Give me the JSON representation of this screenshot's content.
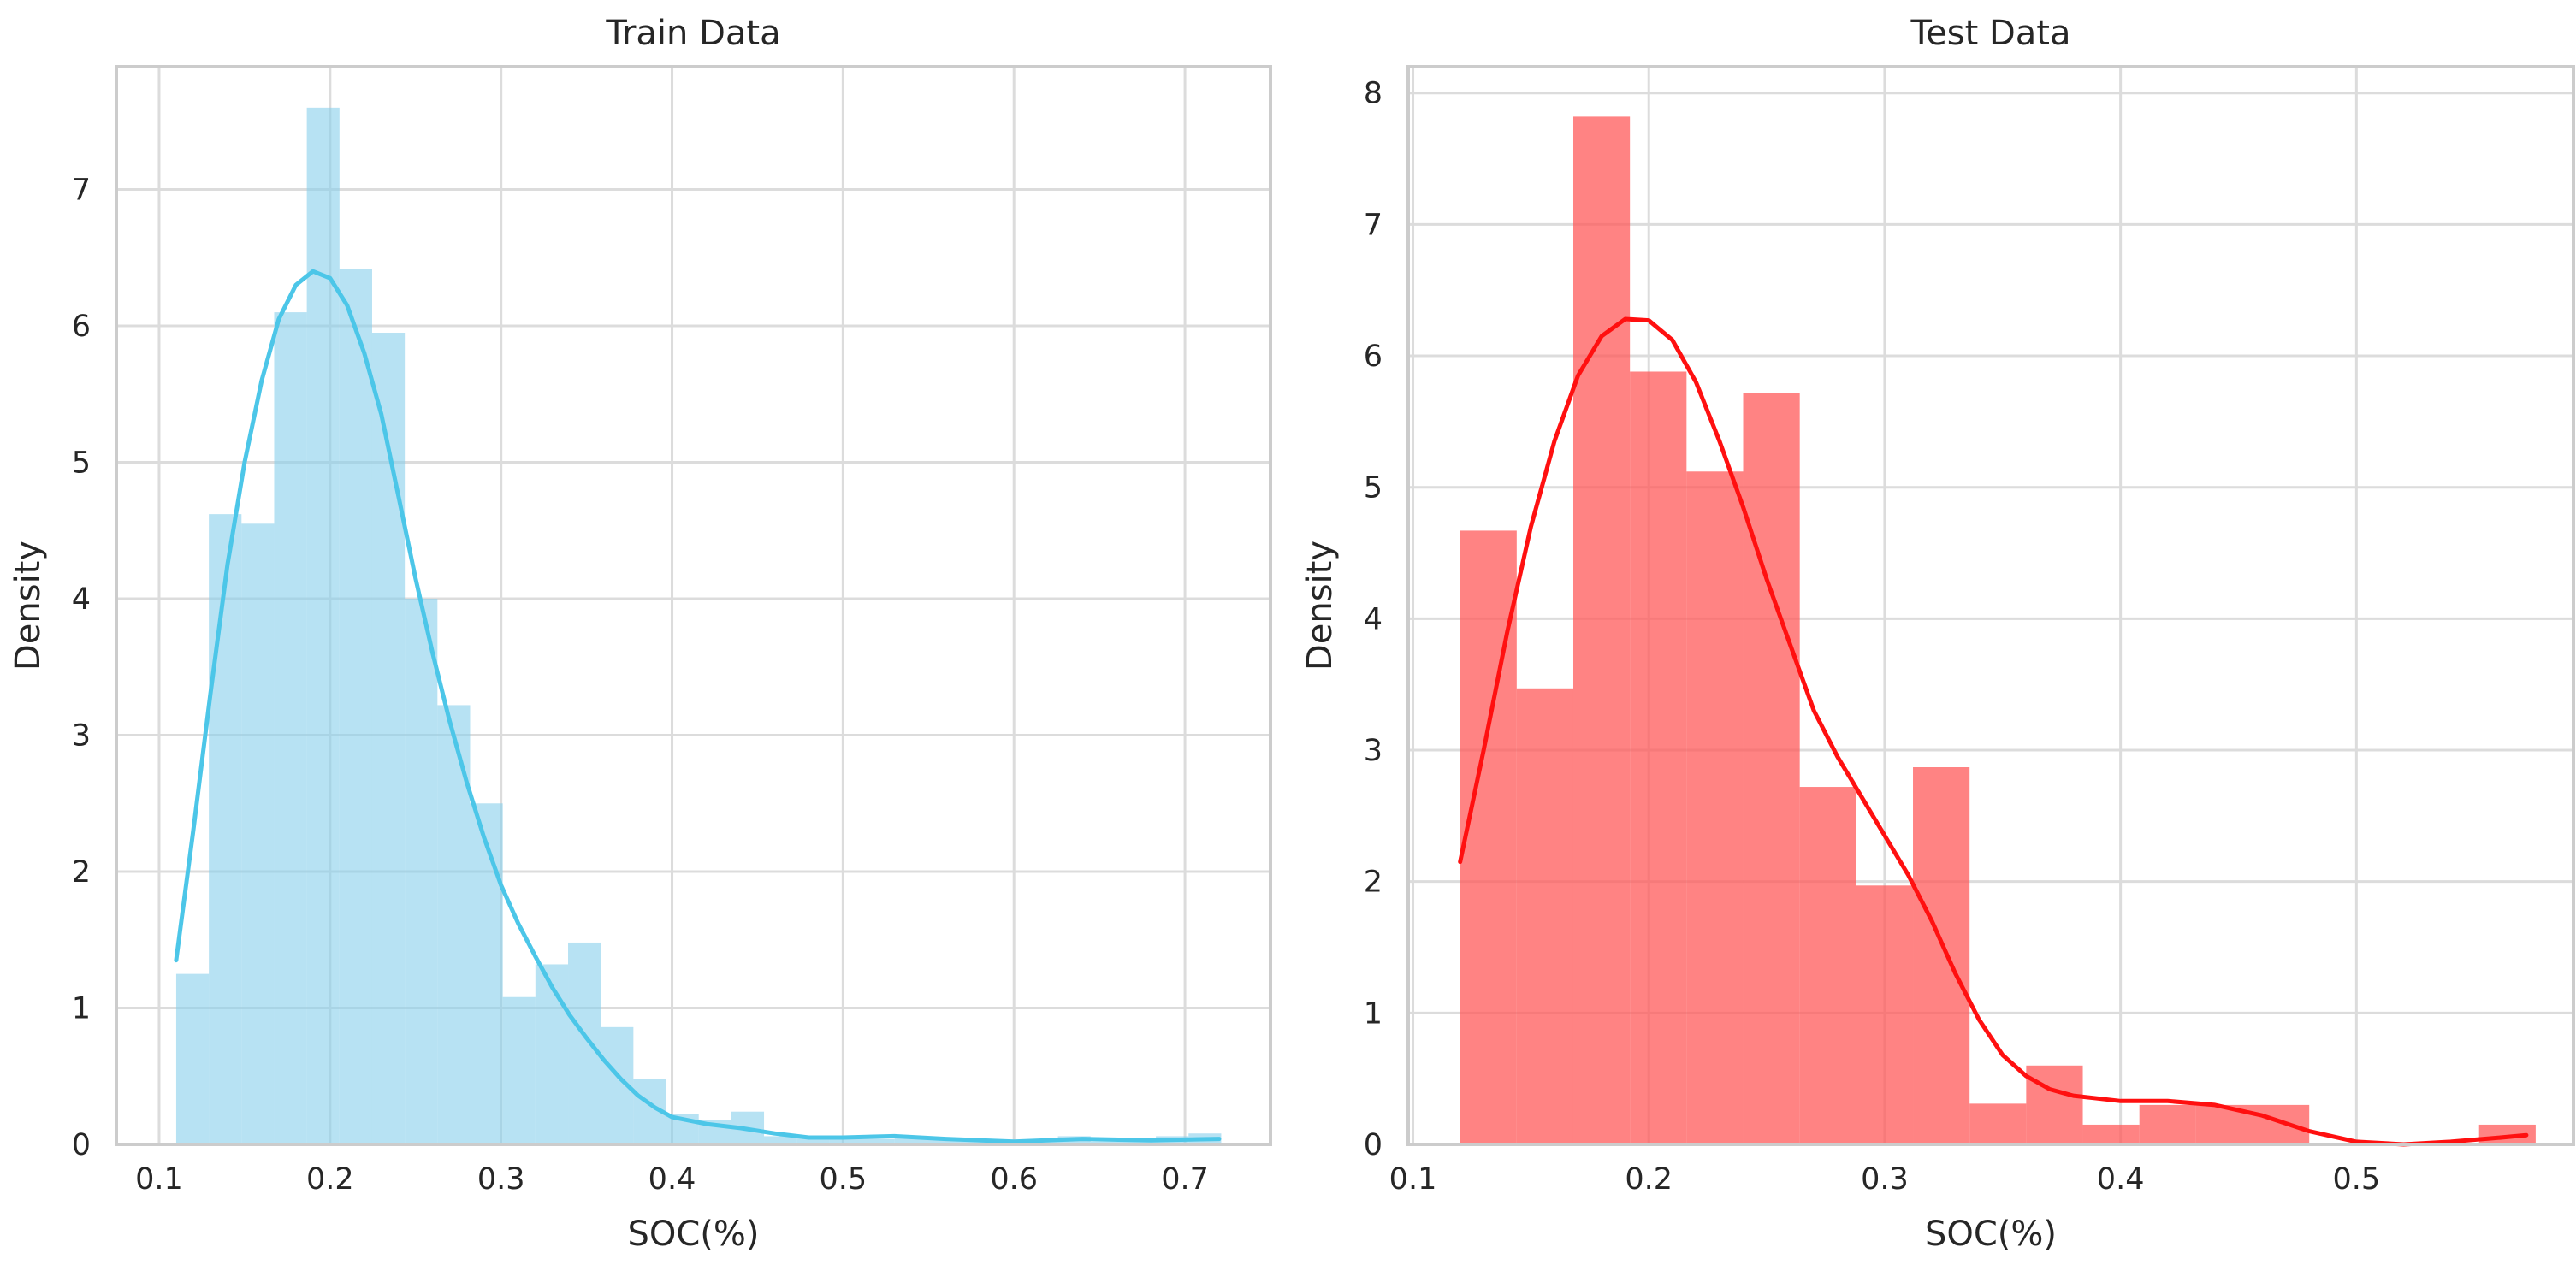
{
  "chart_data": [
    {
      "type": "histogram+kde",
      "title": "Train Data",
      "xlabel": "SOC(%)",
      "ylabel": "Density",
      "xlim": [
        0.075,
        0.75
      ],
      "ylim": [
        0,
        7.9
      ],
      "xticks": [
        "0.1",
        "0.2",
        "0.3",
        "0.4",
        "0.5",
        "0.6",
        "0.7"
      ],
      "xtick_values": [
        0.1,
        0.2,
        0.3,
        0.4,
        0.5,
        0.6,
        0.7
      ],
      "yticks": [
        "0",
        "1",
        "2",
        "3",
        "4",
        "5",
        "6",
        "7"
      ],
      "ytick_values": [
        0,
        1,
        2,
        3,
        4,
        5,
        6,
        7
      ],
      "grid": true,
      "bar_color": "#87CEEB",
      "bar_opacity": 0.6,
      "kde_color": "#4CC6E8",
      "bins": {
        "edges": [
          0.11,
          0.1291,
          0.1482,
          0.1673,
          0.1864,
          0.2055,
          0.2246,
          0.2437,
          0.2628,
          0.2819,
          0.301,
          0.3201,
          0.3392,
          0.3583,
          0.3774,
          0.3965,
          0.4156,
          0.4347,
          0.4538,
          0.4729,
          0.492,
          0.5111,
          0.5302,
          0.5493,
          0.5684,
          0.5875,
          0.6066,
          0.6257,
          0.6448,
          0.6639,
          0.683,
          0.7021,
          0.7212
        ],
        "densities": [
          1.25,
          4.62,
          4.55,
          6.1,
          7.6,
          6.42,
          5.95,
          4.0,
          3.22,
          2.5,
          1.08,
          1.32,
          1.48,
          0.86,
          0.48,
          0.22,
          0.18,
          0.24,
          0.06,
          0.06,
          0.06,
          0.04,
          0.06,
          0.04,
          0.04,
          0.0,
          0.02,
          0.06,
          0.02,
          0.02,
          0.06,
          0.08
        ]
      },
      "kde": {
        "x": [
          0.11,
          0.12,
          0.13,
          0.14,
          0.15,
          0.16,
          0.17,
          0.18,
          0.19,
          0.2,
          0.21,
          0.22,
          0.23,
          0.24,
          0.25,
          0.26,
          0.27,
          0.28,
          0.29,
          0.3,
          0.31,
          0.32,
          0.33,
          0.34,
          0.35,
          0.36,
          0.37,
          0.38,
          0.39,
          0.4,
          0.42,
          0.44,
          0.46,
          0.48,
          0.5,
          0.53,
          0.56,
          0.6,
          0.64,
          0.68,
          0.72
        ],
        "y": [
          1.35,
          2.3,
          3.3,
          4.25,
          5.0,
          5.6,
          6.05,
          6.3,
          6.4,
          6.35,
          6.15,
          5.8,
          5.35,
          4.75,
          4.15,
          3.6,
          3.1,
          2.65,
          2.25,
          1.9,
          1.62,
          1.38,
          1.15,
          0.95,
          0.78,
          0.62,
          0.48,
          0.36,
          0.27,
          0.2,
          0.15,
          0.12,
          0.08,
          0.05,
          0.05,
          0.06,
          0.04,
          0.02,
          0.04,
          0.03,
          0.04
        ]
      }
    },
    {
      "type": "histogram+kde",
      "title": "Test Data",
      "xlabel": "SOC(%)",
      "ylabel": "Density",
      "xlim": [
        0.098,
        0.592
      ],
      "ylim": [
        0,
        8.2
      ],
      "xticks": [
        "0.1",
        "0.2",
        "0.3",
        "0.4",
        "0.5"
      ],
      "xtick_values": [
        0.1,
        0.2,
        0.3,
        0.4,
        0.5
      ],
      "yticks": [
        "0",
        "1",
        "2",
        "3",
        "4",
        "5",
        "6",
        "7",
        "8"
      ],
      "ytick_values": [
        0,
        1,
        2,
        3,
        4,
        5,
        6,
        7,
        8
      ],
      "grid": true,
      "bar_color": "#FF5A5A",
      "bar_opacity": 0.75,
      "kde_color": "#FF1010",
      "bins": {
        "edges": [
          0.12,
          0.144,
          0.168,
          0.192,
          0.216,
          0.24,
          0.264,
          0.288,
          0.312,
          0.336,
          0.36,
          0.384,
          0.408,
          0.432,
          0.456,
          0.48,
          0.504,
          0.528,
          0.552,
          0.576
        ],
        "densities": [
          4.67,
          3.47,
          7.82,
          5.88,
          5.12,
          5.72,
          2.72,
          1.97,
          2.87,
          0.31,
          0.6,
          0.15,
          0.3,
          0.3,
          0.3,
          0.0,
          0.0,
          0.0,
          0.15
        ]
      },
      "kde": {
        "x": [
          0.12,
          0.13,
          0.14,
          0.15,
          0.16,
          0.17,
          0.18,
          0.19,
          0.2,
          0.21,
          0.22,
          0.23,
          0.24,
          0.25,
          0.26,
          0.27,
          0.28,
          0.29,
          0.3,
          0.31,
          0.32,
          0.33,
          0.34,
          0.35,
          0.36,
          0.37,
          0.38,
          0.39,
          0.4,
          0.42,
          0.44,
          0.46,
          0.48,
          0.5,
          0.52,
          0.54,
          0.56,
          0.572
        ],
        "y": [
          2.15,
          3.0,
          3.9,
          4.7,
          5.35,
          5.85,
          6.15,
          6.28,
          6.27,
          6.12,
          5.8,
          5.35,
          4.85,
          4.3,
          3.8,
          3.3,
          2.95,
          2.65,
          2.35,
          2.05,
          1.7,
          1.3,
          0.95,
          0.68,
          0.52,
          0.42,
          0.37,
          0.35,
          0.33,
          0.33,
          0.3,
          0.22,
          0.1,
          0.02,
          0.0,
          0.02,
          0.05,
          0.07
        ]
      }
    }
  ]
}
